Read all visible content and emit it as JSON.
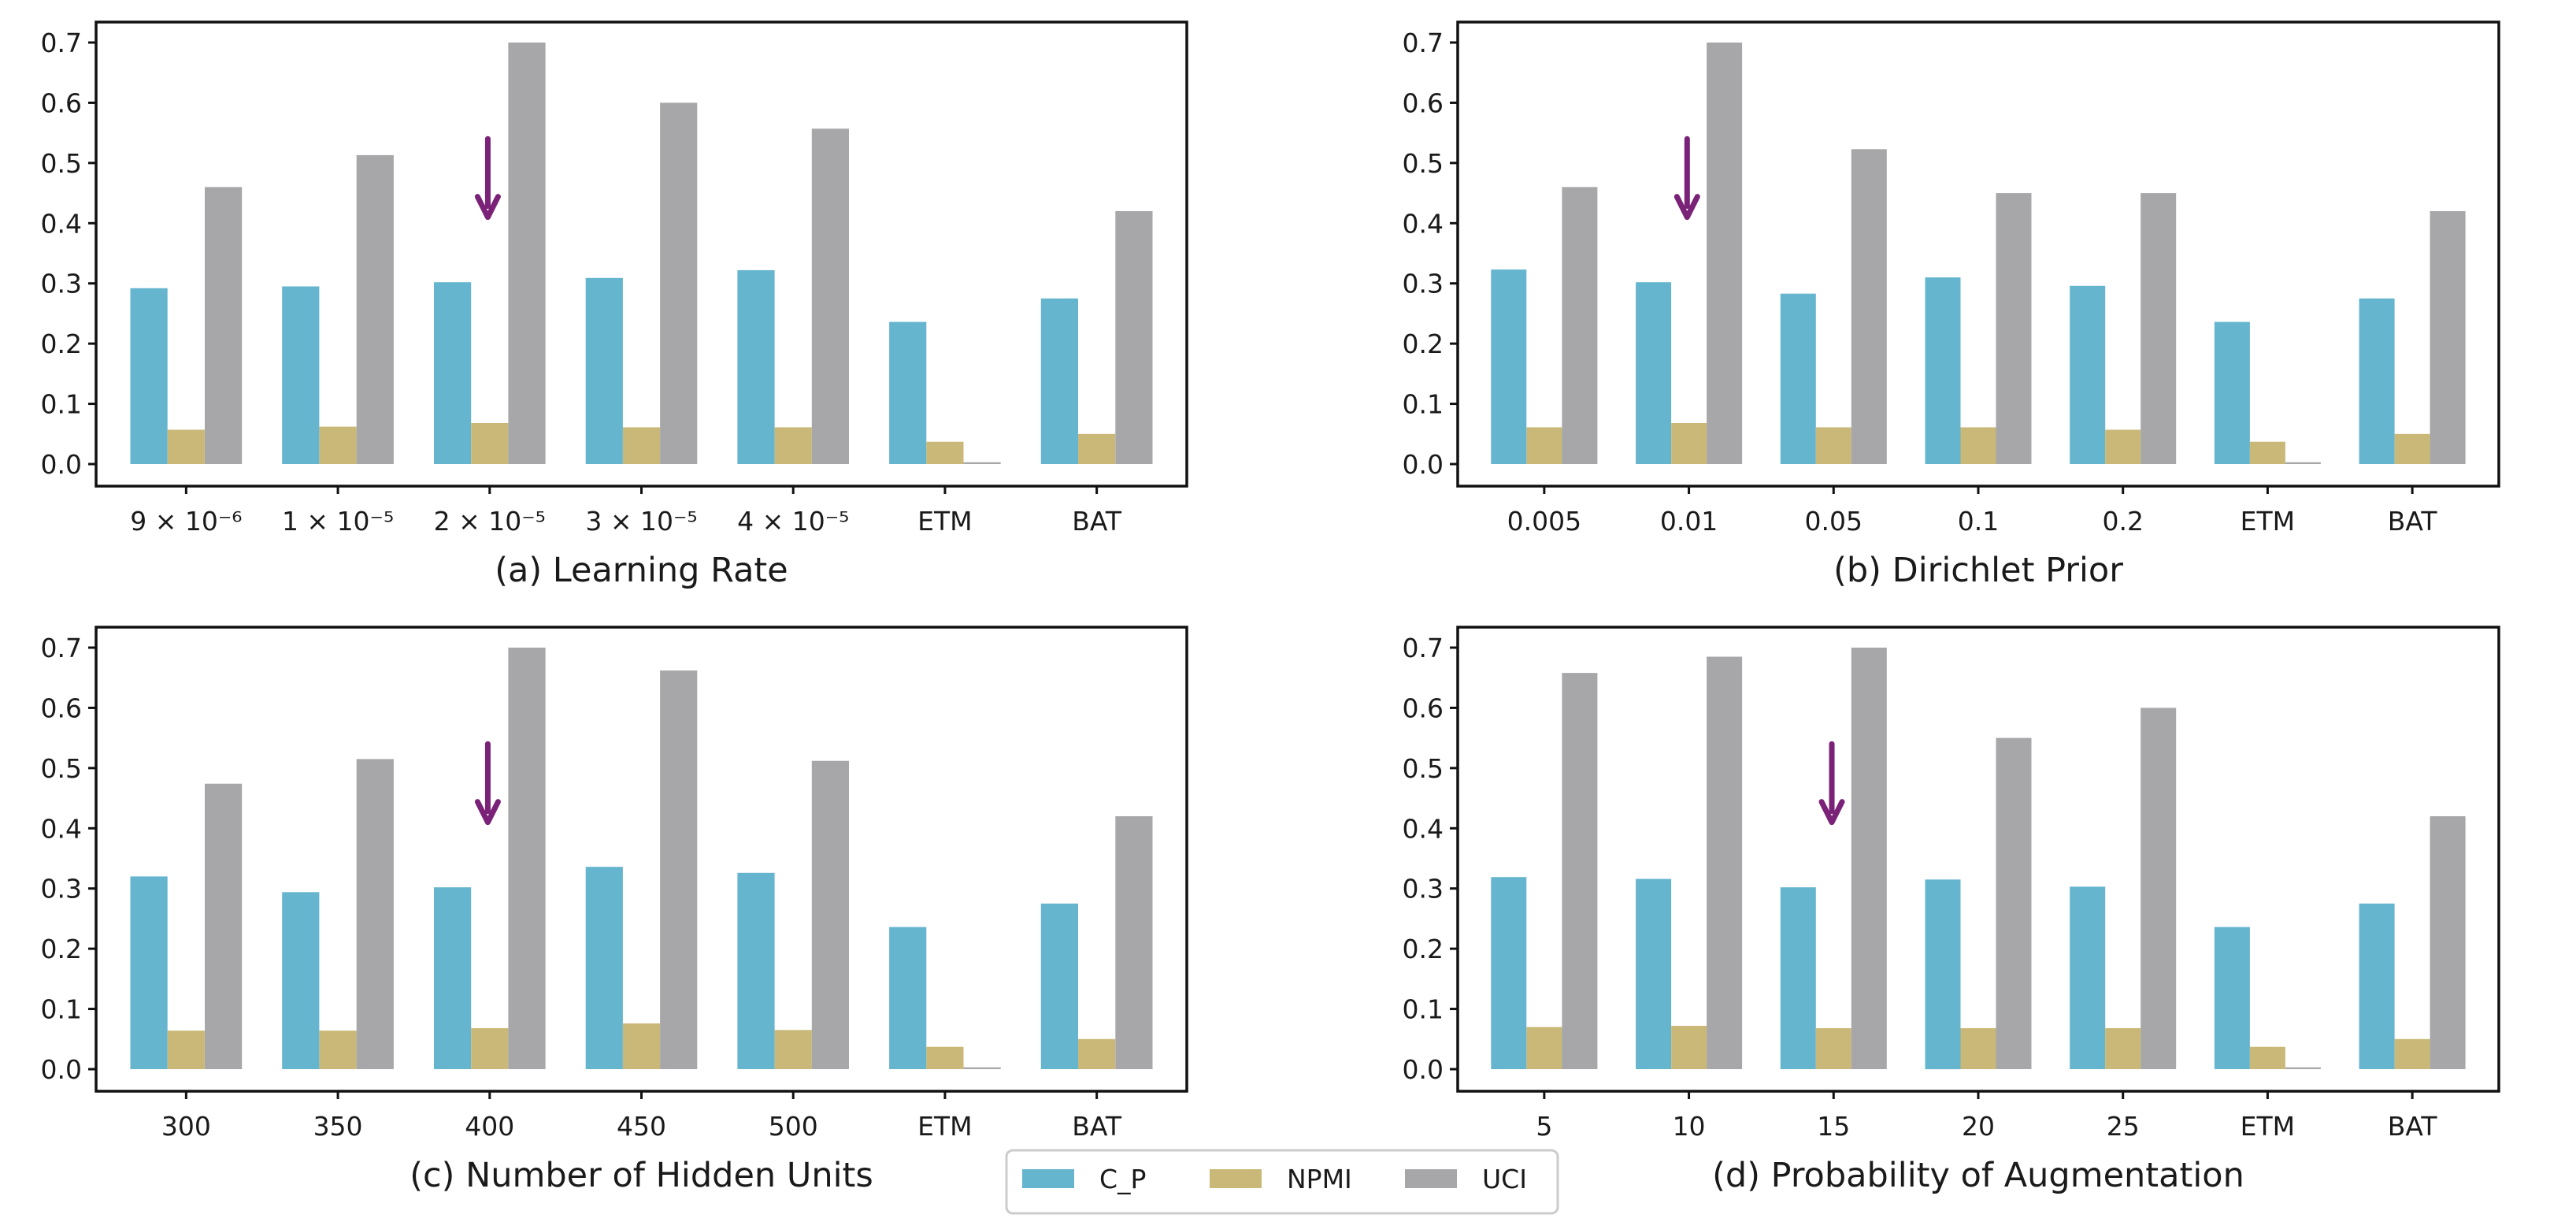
{
  "colors": {
    "c_p": "#65b5cf",
    "npmi": "#c9b877",
    "uci": "#a7a7a9",
    "arrow": "#7a2277",
    "axis": "#111111"
  },
  "legend": {
    "entries": [
      "C_P",
      "NPMI",
      "UCI"
    ]
  },
  "chart_data": [
    {
      "type": "bar",
      "title": "(a) Learning Rate",
      "categories": [
        "9 × 10⁻⁶",
        "1 × 10⁻⁵",
        "2 × 10⁻⁵",
        "3 × 10⁻⁵",
        "4 × 10⁻⁵",
        "ETM",
        "BAT"
      ],
      "series": [
        {
          "name": "C_P",
          "values": [
            0.292,
            0.295,
            0.302,
            0.309,
            0.322,
            0.236,
            0.275
          ]
        },
        {
          "name": "NPMI",
          "values": [
            0.057,
            0.062,
            0.068,
            0.061,
            0.061,
            0.037,
            0.05
          ]
        },
        {
          "name": "UCI",
          "values": [
            0.46,
            0.513,
            0.7,
            0.6,
            0.557,
            0.003,
            0.42
          ]
        }
      ],
      "ylim": [
        0,
        0.7
      ],
      "yticks": [
        "0.0",
        "0.1",
        "0.2",
        "0.3",
        "0.4",
        "0.5",
        "0.6",
        "0.7"
      ],
      "arrow_category_index": 2
    },
    {
      "type": "bar",
      "title": "(b) Dirichlet Prior",
      "categories": [
        "0.005",
        "0.01",
        "0.05",
        "0.1",
        "0.2",
        "ETM",
        "BAT"
      ],
      "series": [
        {
          "name": "C_P",
          "values": [
            0.323,
            0.302,
            0.283,
            0.31,
            0.296,
            0.236,
            0.275
          ]
        },
        {
          "name": "NPMI",
          "values": [
            0.061,
            0.068,
            0.061,
            0.061,
            0.057,
            0.037,
            0.05
          ]
        },
        {
          "name": "UCI",
          "values": [
            0.46,
            0.7,
            0.523,
            0.45,
            0.45,
            0.003,
            0.42
          ]
        }
      ],
      "ylim": [
        0,
        0.7
      ],
      "yticks": [
        "0.0",
        "0.1",
        "0.2",
        "0.3",
        "0.4",
        "0.5",
        "0.6",
        "0.7"
      ],
      "arrow_category_index": 1
    },
    {
      "type": "bar",
      "title": "(c) Number of Hidden Units",
      "categories": [
        "300",
        "350",
        "400",
        "450",
        "500",
        "ETM",
        "BAT"
      ],
      "series": [
        {
          "name": "C_P",
          "values": [
            0.32,
            0.294,
            0.302,
            0.336,
            0.326,
            0.236,
            0.275
          ]
        },
        {
          "name": "NPMI",
          "values": [
            0.064,
            0.064,
            0.068,
            0.076,
            0.065,
            0.037,
            0.05
          ]
        },
        {
          "name": "UCI",
          "values": [
            0.474,
            0.515,
            0.7,
            0.662,
            0.512,
            0.003,
            0.42
          ]
        }
      ],
      "ylim": [
        0,
        0.7
      ],
      "yticks": [
        "0.0",
        "0.1",
        "0.2",
        "0.3",
        "0.4",
        "0.5",
        "0.6",
        "0.7"
      ],
      "arrow_category_index": 2
    },
    {
      "type": "bar",
      "title": "(d) Probability of Augmentation",
      "categories": [
        "5",
        "10",
        "15",
        "20",
        "25",
        "ETM",
        "BAT"
      ],
      "series": [
        {
          "name": "C_P",
          "values": [
            0.319,
            0.316,
            0.302,
            0.315,
            0.303,
            0.236,
            0.275
          ]
        },
        {
          "name": "NPMI",
          "values": [
            0.07,
            0.072,
            0.068,
            0.068,
            0.068,
            0.037,
            0.05
          ]
        },
        {
          "name": "UCI",
          "values": [
            0.658,
            0.685,
            0.7,
            0.55,
            0.6,
            0.003,
            0.42
          ]
        }
      ],
      "ylim": [
        0,
        0.7
      ],
      "yticks": [
        "0.0",
        "0.1",
        "0.2",
        "0.3",
        "0.4",
        "0.5",
        "0.6",
        "0.7"
      ],
      "arrow_category_index": 2
    }
  ]
}
